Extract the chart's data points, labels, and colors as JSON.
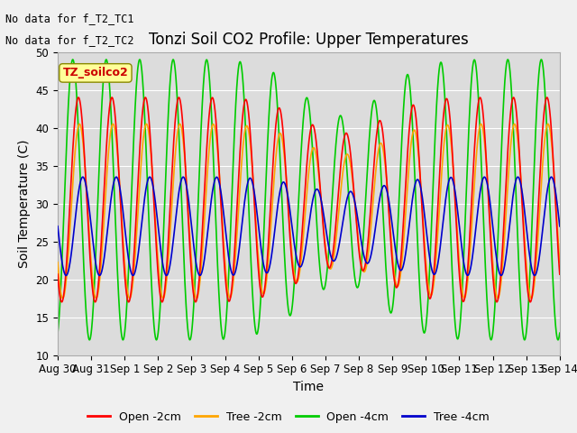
{
  "title": "Tonzi Soil CO2 Profile: Upper Temperatures",
  "xlabel": "Time",
  "ylabel": "Soil Temperature (C)",
  "ylim": [
    10,
    50
  ],
  "xlim_days": [
    0,
    15
  ],
  "tick_labels": [
    "Aug 30",
    "Aug 31",
    "Sep 1",
    "Sep 2",
    "Sep 3",
    "Sep 4",
    "Sep 5",
    "Sep 6",
    "Sep 7",
    "Sep 8",
    "Sep 9",
    "Sep 10",
    "Sep 11",
    "Sep 12",
    "Sep 13",
    "Sep 14"
  ],
  "yticks": [
    10,
    15,
    20,
    25,
    30,
    35,
    40,
    45,
    50
  ],
  "legend_entries": [
    "Open -2cm",
    "Tree -2cm",
    "Open -4cm",
    "Tree -4cm"
  ],
  "line_colors": [
    "#ff0000",
    "#ffa500",
    "#00cc00",
    "#0000cc"
  ],
  "annotations": [
    "No data for f_T2_TC1",
    "No data for f_T2_TC2"
  ],
  "small_legend_text": "TZ_soilco2",
  "small_legend_color": "#ffff99",
  "bg_color": "#dcdcdc",
  "fig_bg_color": "#f0f0f0",
  "title_fontsize": 12,
  "axis_label_fontsize": 10,
  "tick_fontsize": 8.5,
  "annotation_fontsize": 8.5,
  "linewidth": 1.2
}
